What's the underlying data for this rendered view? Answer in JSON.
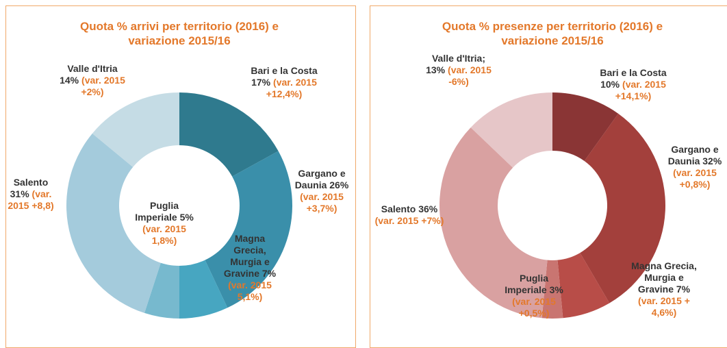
{
  "chart_data": [
    {
      "type": "donut",
      "title": "Quota % arrivi per territorio (2016) e variazione 2015/16",
      "categories": [
        "Bari e la Costa",
        "Gargano e Daunia",
        "Magna Grecia, Murgia e Gravine",
        "Puglia Imperiale",
        "Salento",
        "Valle d'Itria"
      ],
      "values": [
        17,
        26,
        7,
        5,
        31,
        14
      ],
      "value_labels": [
        "17%",
        "26%",
        "7%",
        "5%",
        "31%",
        "14%"
      ],
      "variation_labels": [
        "(var. 2015 +12,4%)",
        "(var. 2015 +3,7%)",
        "(var. 2015 5,1%)",
        "(var. 2015 1,8%)",
        "(var. 2015 +8,8)",
        "(var. 2015 +2%)"
      ],
      "colors": [
        "#2f7a8e",
        "#3a8faa",
        "#47a6c1",
        "#77b9ce",
        "#a4cbdc",
        "#c5dce5"
      ]
    },
    {
      "type": "donut",
      "title": "Quota % presenze per territorio (2016) e variazione 2015/16",
      "categories": [
        "Bari e la Costa",
        "Gargano e Daunia",
        "Magna Grecia, Murgia e Gravine",
        "Puglia Imperiale",
        "Salento",
        "Valle d'Itria;"
      ],
      "values": [
        10,
        32,
        7,
        3,
        36,
        13
      ],
      "value_labels": [
        "10%",
        "32%",
        "7%",
        "3%",
        "36%",
        "13%"
      ],
      "variation_labels": [
        "(var. 2015 +14,1%)",
        "(var. 2015 +0,8%)",
        "(var. 2015 + 4,6%)",
        "(var. 2015 +0,5%)",
        "(var. 2015 +7%)",
        "(var. 2015 -6%)"
      ],
      "colors": [
        "#8a3535",
        "#a3403c",
        "#b84d48",
        "#c97571",
        "#d9a1a1",
        "#e6c6c8"
      ]
    }
  ]
}
